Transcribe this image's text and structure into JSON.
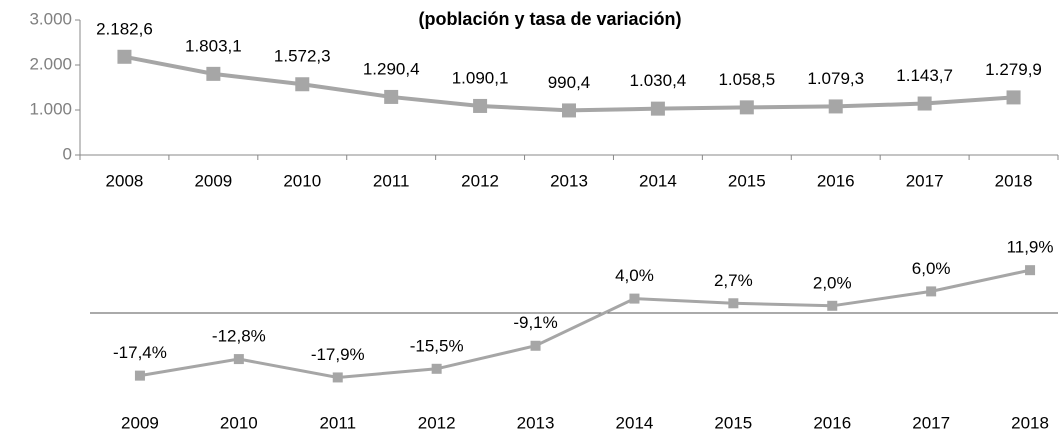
{
  "chart_data": [
    {
      "type": "line",
      "title": "(población y tasa de variación)",
      "categories": [
        "2008",
        "2009",
        "2010",
        "2011",
        "2012",
        "2013",
        "2014",
        "2015",
        "2016",
        "2017",
        "2018"
      ],
      "series": [
        {
          "color": "#a6a6a6",
          "values": [
            2182.6,
            1803.1,
            1572.3,
            1290.4,
            1090.1,
            990.4,
            1030.4,
            1058.5,
            1079.3,
            1143.7,
            1279.9
          ],
          "value_labels": [
            "2.182,6",
            "1.803,1",
            "1.572,3",
            "1.290,4",
            "1.090,1",
            "990,4",
            "1.030,4",
            "1.058,5",
            "1.079,3",
            "1.143,7",
            "1.279,9"
          ]
        }
      ],
      "ylim": [
        0,
        3000
      ],
      "yticks": [
        0,
        {
          "value": 1000,
          "label": "1.000"
        },
        {
          "value": 2000,
          "label": "2.000"
        },
        {
          "value": 3000,
          "label": "3.000"
        }
      ]
    },
    {
      "type": "line",
      "categories": [
        "2009",
        "2010",
        "2011",
        "2012",
        "2013",
        "2014",
        "2015",
        "2016",
        "2017",
        "2018"
      ],
      "series": [
        {
          "color": "#a6a6a6",
          "values": [
            -17.4,
            -12.8,
            -17.9,
            -15.5,
            -9.1,
            4.0,
            2.7,
            2.0,
            6.0,
            11.9
          ],
          "value_labels": [
            "-17,4%",
            "-12,8%",
            "-17,9%",
            "-15,5%",
            "-9,1%",
            "4,0%",
            "2,7%",
            "2,0%",
            "6,0%",
            "11,9%"
          ]
        }
      ],
      "ylim": [
        -20,
        15
      ]
    }
  ]
}
